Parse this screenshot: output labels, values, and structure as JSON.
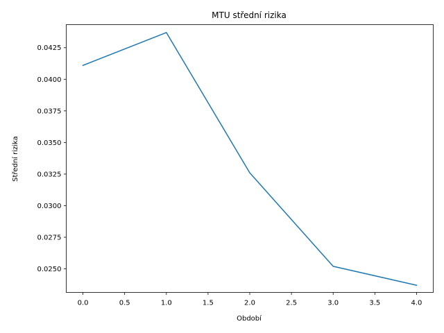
{
  "chart_data": {
    "type": "line",
    "title": "MTU střední rizika",
    "xlabel": "Období",
    "ylabel": "Střední rizika",
    "x": [
      0,
      1,
      2,
      3,
      4
    ],
    "series": [
      {
        "name": "střední rizika",
        "values": [
          0.0411,
          0.0437,
          0.0326,
          0.0252,
          0.0237
        ]
      }
    ],
    "xlim": [
      -0.2,
      4.2
    ],
    "ylim": [
      0.023135,
      0.044325
    ],
    "xticks": [
      0.0,
      0.5,
      1.0,
      1.5,
      2.0,
      2.5,
      3.0,
      3.5,
      4.0
    ],
    "xtick_labels": [
      "0.0",
      "0.5",
      "1.0",
      "1.5",
      "2.0",
      "2.5",
      "3.0",
      "3.5",
      "4.0"
    ],
    "yticks": [
      0.025,
      0.0275,
      0.03,
      0.0325,
      0.035,
      0.0375,
      0.04,
      0.0425
    ],
    "ytick_labels": [
      "0.0250",
      "0.0275",
      "0.0300",
      "0.0325",
      "0.0350",
      "0.0375",
      "0.0400",
      "0.0425"
    ],
    "grid": false,
    "colors": {
      "line": "#1f77b4",
      "axes": "#000000",
      "background": "#ffffff"
    }
  }
}
